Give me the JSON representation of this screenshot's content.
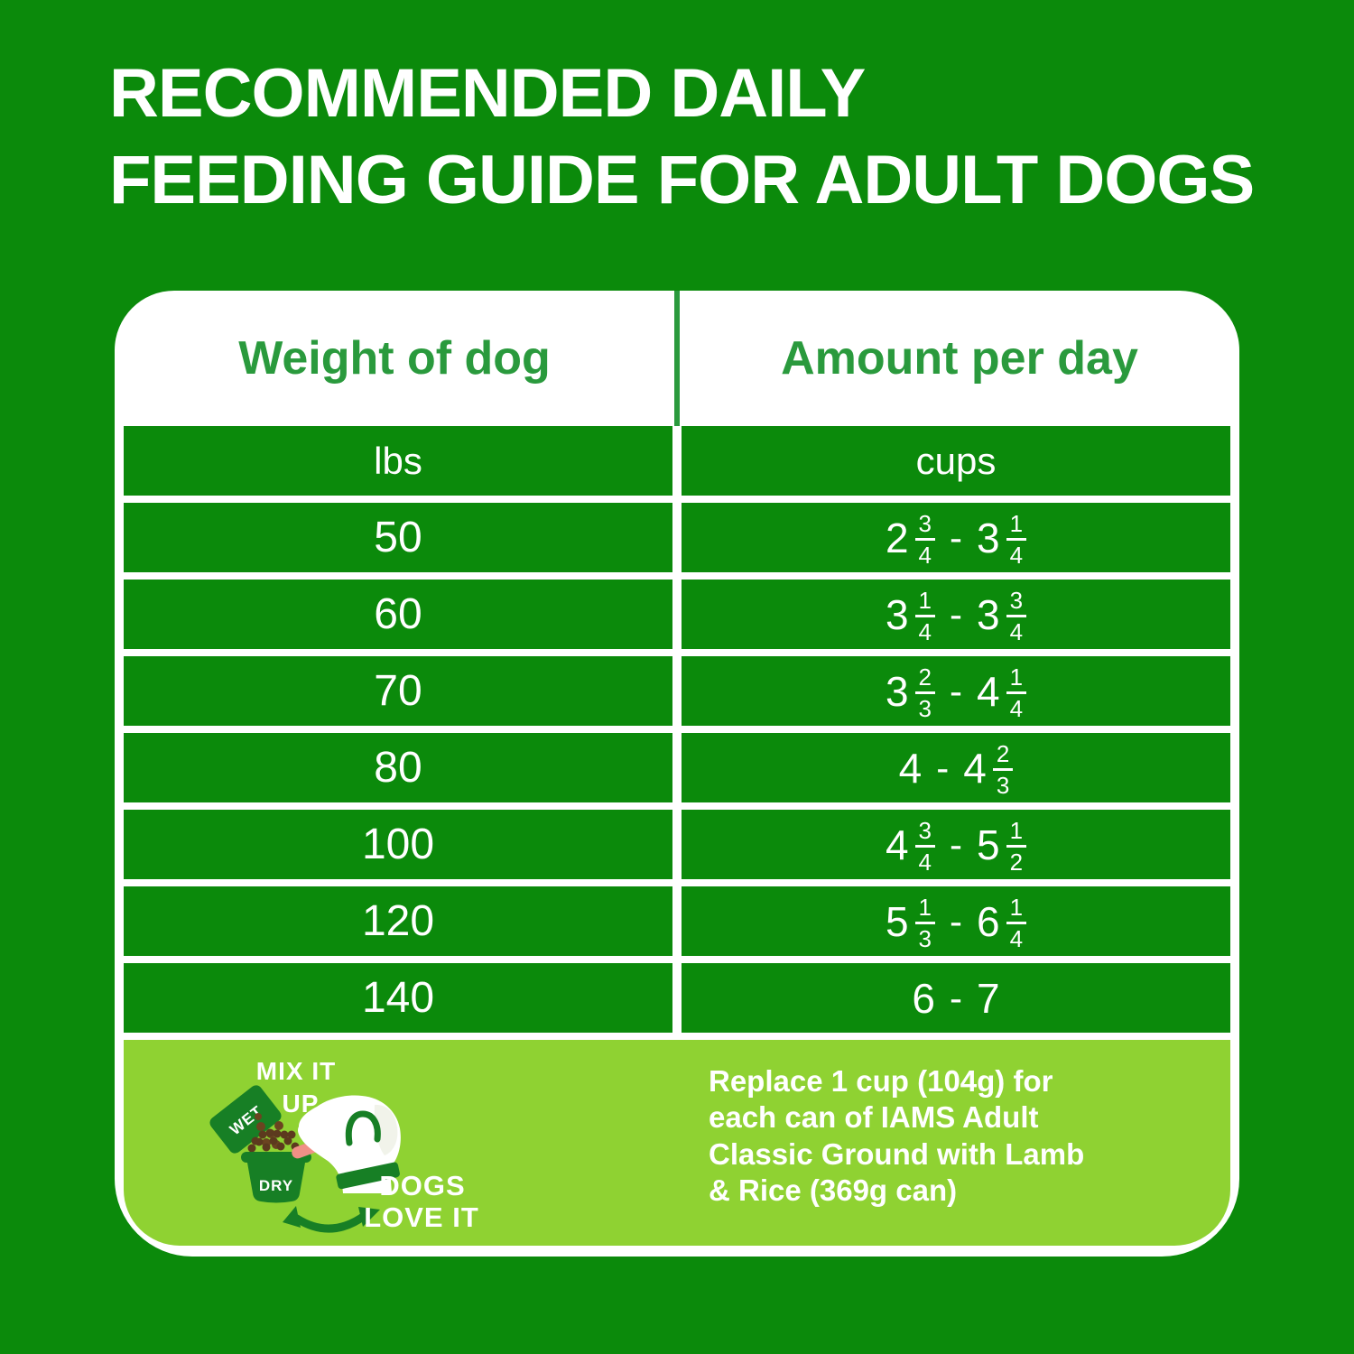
{
  "title": {
    "line1": "RECOMMENDED DAILY",
    "line2": "FEEDING GUIDE FOR ADULT DOGS"
  },
  "table": {
    "headers": [
      "Weight of dog",
      "Amount per day"
    ],
    "units": [
      "lbs",
      "cups"
    ],
    "rows": [
      {
        "weight": "50",
        "min": {
          "w": "2",
          "n": "3",
          "d": "4"
        },
        "max": {
          "w": "3",
          "n": "1",
          "d": "4"
        }
      },
      {
        "weight": "60",
        "min": {
          "w": "3",
          "n": "1",
          "d": "4"
        },
        "max": {
          "w": "3",
          "n": "3",
          "d": "4"
        }
      },
      {
        "weight": "70",
        "min": {
          "w": "3",
          "n": "2",
          "d": "3"
        },
        "max": {
          "w": "4",
          "n": "1",
          "d": "4"
        }
      },
      {
        "weight": "80",
        "min": {
          "w": "4"
        },
        "max": {
          "w": "4",
          "n": "2",
          "d": "3"
        }
      },
      {
        "weight": "100",
        "min": {
          "w": "4",
          "n": "3",
          "d": "4"
        },
        "max": {
          "w": "5",
          "n": "1",
          "d": "2"
        }
      },
      {
        "weight": "120",
        "min": {
          "w": "5",
          "n": "1",
          "d": "3"
        },
        "max": {
          "w": "6",
          "n": "1",
          "d": "4"
        }
      },
      {
        "weight": "140",
        "min": {
          "w": "6"
        },
        "max": {
          "w": "7"
        }
      }
    ]
  },
  "footer": {
    "mix_line1": "MIX IT",
    "mix_line2": "UP",
    "wet_label": "WET",
    "dry_label": "DRY",
    "dogs_line1": "DOGS",
    "dogs_line2": "LOVE IT",
    "note": "Replace 1 cup (104g) for\neach can of IAMS Adult\nClassic Ground with Lamb\n& Rice (369g can)",
    "icons": [
      "wet-pack-icon",
      "dry-bowl-icon",
      "kibble-icon",
      "dog-icon",
      "swap-arrow-icon"
    ]
  },
  "colors": {
    "bg": "#0b8a0b",
    "cell": "#0b8a0b",
    "hdr": "#2a9a3d",
    "lime": "#8fd232",
    "dark": "#177f25",
    "brown": "#5c3a1e",
    "tongue": "#f09086"
  }
}
